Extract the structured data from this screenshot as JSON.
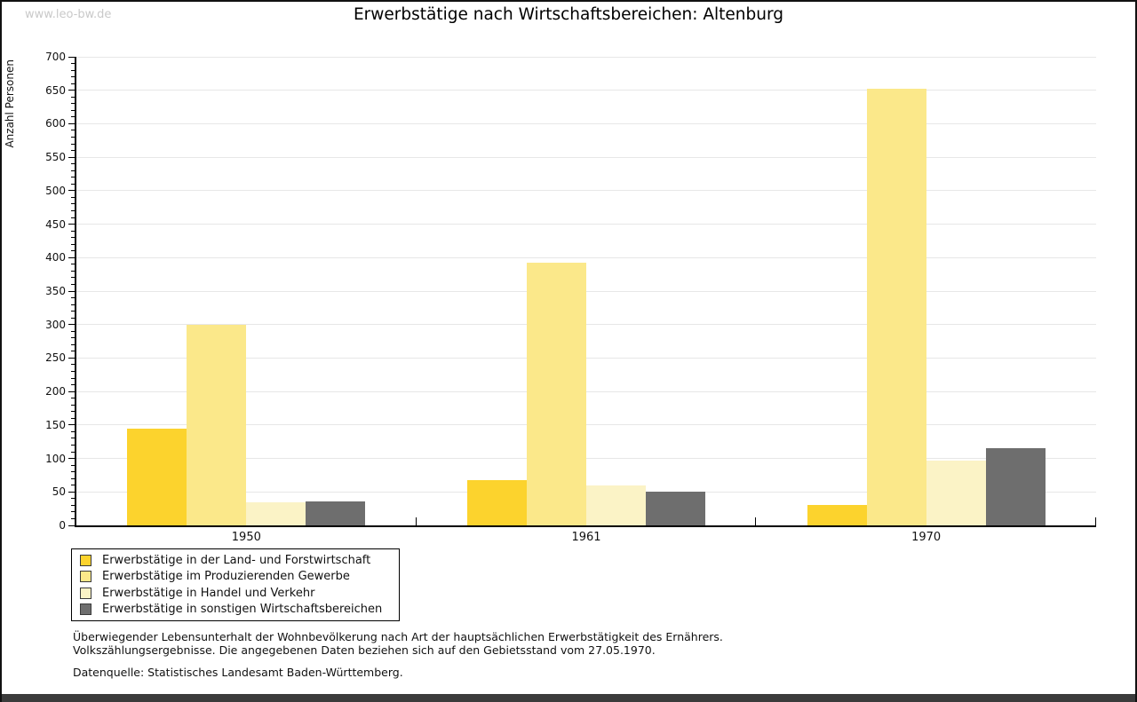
{
  "page": {
    "watermark": "www.leo-bw.de",
    "title": "Erwerbstätige nach Wirtschaftsbereichen: Altenburg",
    "footnote_line1": "Überwiegender Lebensunterhalt der Wohnbevölkerung nach Art der hauptsächlichen Erwerbstätigkeit des Ernährers.",
    "footnote_line2": "Volkszählungsergebnisse. Die angegebenen Daten beziehen sich auf den Gebietsstand vom 27.05.1970.",
    "datasource": "Datenquelle: Statistisches Landesamt Baden-Württemberg."
  },
  "chart_data": {
    "type": "bar",
    "title": "Erwerbstätige nach Wirtschaftsbereichen: Altenburg",
    "categories": [
      "1950",
      "1961",
      "1970"
    ],
    "series": [
      {
        "name": "Erwerbstätige in der Land- und Forstwirtschaft",
        "color": "#fcd32d",
        "values": [
          144,
          68,
          30
        ]
      },
      {
        "name": "Erwerbstätige im Produzierenden Gewerbe",
        "color": "#fbe88a",
        "values": [
          300,
          393,
          652
        ]
      },
      {
        "name": "Erwerbstätige in Handel und Verkehr",
        "color": "#fbf3c6",
        "values": [
          35,
          60,
          97
        ]
      },
      {
        "name": "Erwerbstätige in sonstigen Wirtschaftsbereichen",
        "color": "#6e6e6e",
        "values": [
          36,
          50,
          115
        ]
      }
    ],
    "xlabel": "",
    "ylabel": "Anzahl Personen",
    "ylim": [
      0,
      700
    ],
    "ytick_step": 50,
    "minor_tick_step": 10,
    "grid": "horizontal-major",
    "legend_position": "bottom-left",
    "gridline_color": "#e7e7e7"
  }
}
